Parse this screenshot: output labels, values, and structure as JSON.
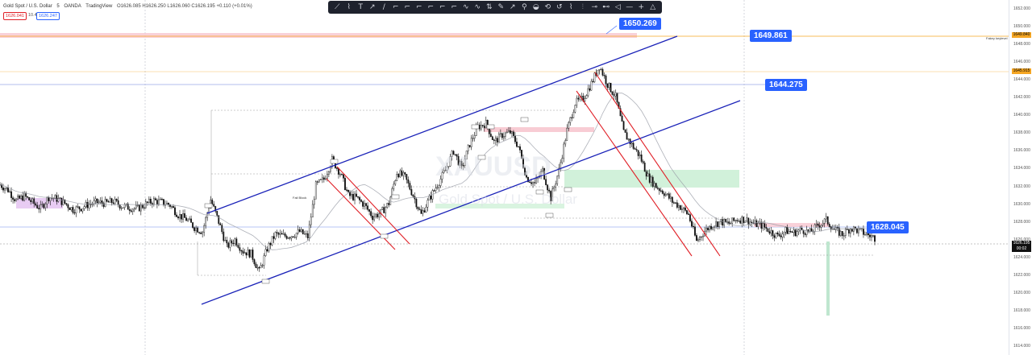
{
  "header": {
    "symbol": "Gold Spot / U.S. Dollar",
    "interval": "5",
    "broker": "OANDA",
    "platform": "TradingView",
    "ohlc": "O1626.085 H1626.250 L1626.060 C1626.195 +0.110 (+0.01%)",
    "bid": "1626.041",
    "spread": "10.4",
    "ask": "1626.247"
  },
  "toolbar": {
    "tools": [
      "trend-line-tool",
      "fib-tool",
      "text-tool",
      "ray-tool",
      "brush-tool",
      "callout-tool",
      "flag-tool",
      "note-tool",
      "price-label-tool",
      "arrow-tool",
      "balloon-tool",
      "pattern-tool",
      "projection-tool",
      "marker-tool",
      "long-position-tool",
      "short-position-tool",
      "date-range-tool",
      "forecast-tool",
      "arrow-mark-tool",
      "brush2-tool",
      "path-tool",
      "measure-tool",
      "zoom-tool",
      "magnet-tool",
      "pencil-tool",
      "hline-tool",
      "plus-tool",
      "flag2-tool"
    ],
    "glyphs": [
      "⟋",
      "⌇",
      "T",
      "↗",
      "∕",
      "⌐",
      "⌐",
      "⌐",
      "⌐",
      "⌐",
      "⌐",
      "∿",
      "∿",
      "⇅",
      "✎",
      "↗",
      "⚲",
      "◒",
      "⟲",
      "↺",
      "⌇",
      "⫶",
      "⊸",
      "⊷",
      "◁",
      "—",
      "+",
      "△"
    ]
  },
  "callouts": [
    {
      "label": "1650.269"
    },
    {
      "label": "1649.861"
    },
    {
      "label": "1644.275"
    },
    {
      "label": "1628.045"
    }
  ],
  "price_axis": {
    "ticks": [
      "1652.000",
      "1650.000",
      "1648.000",
      "1646.000",
      "1644.000",
      "1642.000",
      "1640.000",
      "1638.000",
      "1636.000",
      "1634.000",
      "1632.000",
      "1630.000",
      "1628.000",
      "1626.000",
      "1624.000",
      "1622.000",
      "1620.000",
      "1618.000",
      "1616.000",
      "1614.000"
    ],
    "orange_badge_1": "1649.840",
    "orange_badge_2": "1645.915",
    "current_price": "1626.195",
    "countdown": "00:02"
  },
  "labels": {
    "fakey_keylevel": "Fakey keylevel",
    "fail_block": "Fail Block",
    "watermark": "XAUUSD",
    "watermark_sub": "Gold Spot / U.S. Dollar"
  },
  "colors": {
    "channel": "#1a22b8",
    "red_channel": "#e01f26",
    "callout": "#2962ff",
    "orange": "#f5a623",
    "pink_zone": "#f7c6cf",
    "green_zone": "#c9efd3",
    "violet_zone": "#e6c6f2",
    "candle": "#111111"
  },
  "chart_data": {
    "type": "line",
    "title": "Gold Spot / U.S. Dollar",
    "ylim": [
      1614,
      1653
    ],
    "series": [
      {
        "name": "XAUUSD",
        "x_index": [
          0,
          10,
          20,
          30,
          40,
          50,
          60,
          70,
          80,
          90,
          100,
          110,
          120,
          130,
          140,
          150,
          160,
          170,
          180,
          190,
          200,
          210,
          220,
          230,
          240,
          250,
          260,
          270,
          280,
          290,
          300,
          310,
          320,
          330,
          340,
          350,
          360,
          370,
          380,
          390,
          400,
          410,
          420,
          430,
          440,
          450,
          460,
          470,
          480,
          490,
          500,
          510,
          520,
          530,
          540,
          550,
          560,
          570,
          580,
          590,
          600,
          610,
          620,
          630,
          640,
          650,
          660,
          670,
          680,
          690,
          700,
          710,
          720,
          730,
          740,
          750,
          760,
          770,
          780,
          790,
          800,
          810,
          820,
          830,
          840,
          850,
          860,
          870,
          880,
          890,
          900,
          910,
          920,
          930,
          940,
          950,
          960,
          970,
          980,
          990,
          1000,
          1010,
          1020,
          1030,
          1040,
          1050,
          1060,
          1070,
          1080
        ],
        "values": [
          1632.2,
          1631.6,
          1630.4,
          1630.9,
          1630.2,
          1629.5,
          1630.8,
          1630.6,
          1630.1,
          1629.4,
          1629.6,
          1630.0,
          1630.2,
          1630.1,
          1630.3,
          1629.8,
          1629.6,
          1629.5,
          1630.0,
          1630.4,
          1630.2,
          1629.9,
          1628.8,
          1628.3,
          1627.4,
          1626.9,
          1630.5,
          1628.0,
          1625.2,
          1626.0,
          1624.7,
          1624.4,
          1622.4,
          1625.0,
          1626.6,
          1626.4,
          1626.5,
          1626.9,
          1626.3,
          1632.1,
          1632.8,
          1635.0,
          1633.5,
          1631.0,
          1630.7,
          1629.9,
          1628.6,
          1629.0,
          1630.1,
          1633.6,
          1633.0,
          1631.0,
          1628.8,
          1630.6,
          1632.2,
          1633.8,
          1636.0,
          1634.0,
          1636.8,
          1638.7,
          1639.1,
          1637.0,
          1637.8,
          1638.1,
          1636.5,
          1633.0,
          1632.3,
          1633.8,
          1630.7,
          1633.8,
          1638.3,
          1641.4,
          1641.9,
          1643.6,
          1645.6,
          1643.5,
          1642.1,
          1638.1,
          1636.7,
          1635.4,
          1633.1,
          1632.0,
          1631.3,
          1630.3,
          1629.7,
          1628.8,
          1625.8,
          1627.0,
          1627.7,
          1628.0,
          1627.8,
          1628.3,
          1628.3,
          1627.8,
          1627.6,
          1627.0,
          1626.4,
          1627.0,
          1626.8,
          1627.1,
          1626.8,
          1627.6,
          1628.2,
          1627.1,
          1626.6,
          1627.3,
          1627.0,
          1626.6,
          1626.2
        ]
      }
    ],
    "horizontal_levels": [
      1650.269,
      1649.861,
      1649.84,
      1645.915,
      1644.275,
      1628.045,
      1626.195
    ]
  }
}
